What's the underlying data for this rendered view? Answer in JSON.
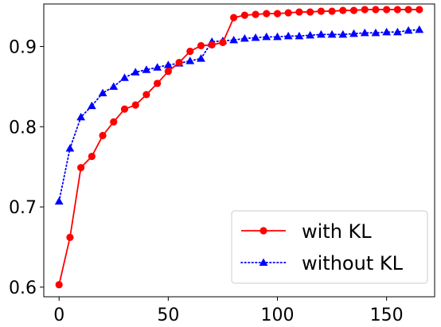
{
  "chart_data": {
    "type": "line",
    "title": "",
    "xlabel": "",
    "ylabel": "",
    "xlim": [
      -7,
      172
    ],
    "ylim": [
      0.588,
      0.953
    ],
    "xticks": [
      0,
      50,
      100,
      150
    ],
    "xtick_labels": [
      "0",
      "50",
      "100",
      "150"
    ],
    "yticks": [
      0.6,
      0.7,
      0.8,
      0.9
    ],
    "ytick_labels": [
      "0.6",
      "0.7",
      "0.8",
      "0.9"
    ],
    "grid": false,
    "legend_position": "lower-right",
    "series": [
      {
        "name": "with KL",
        "color": "#ff0000",
        "line_style": "solid",
        "marker": "circle",
        "x": [
          0,
          5,
          10,
          15,
          20,
          25,
          30,
          35,
          40,
          45,
          50,
          55,
          60,
          65,
          70,
          75,
          80,
          85,
          90,
          95,
          100,
          105,
          110,
          115,
          120,
          125,
          130,
          135,
          140,
          145,
          150,
          155,
          160,
          165
        ],
        "y": [
          0.603,
          0.662,
          0.749,
          0.763,
          0.789,
          0.806,
          0.822,
          0.827,
          0.84,
          0.854,
          0.869,
          0.88,
          0.894,
          0.901,
          0.902,
          0.905,
          0.936,
          0.939,
          0.94,
          0.941,
          0.941,
          0.942,
          0.943,
          0.943,
          0.944,
          0.944,
          0.945,
          0.945,
          0.946,
          0.946,
          0.946,
          0.946,
          0.946,
          0.946
        ]
      },
      {
        "name": "without KL",
        "color": "#0000ff",
        "line_style": "dotted",
        "marker": "triangle",
        "x": [
          0,
          5,
          10,
          15,
          20,
          25,
          30,
          35,
          40,
          45,
          50,
          55,
          60,
          65,
          70,
          75,
          80,
          85,
          90,
          95,
          100,
          105,
          110,
          115,
          120,
          125,
          130,
          135,
          140,
          145,
          150,
          155,
          160,
          165
        ],
        "y": [
          0.707,
          0.773,
          0.812,
          0.826,
          0.842,
          0.85,
          0.861,
          0.868,
          0.871,
          0.874,
          0.877,
          0.879,
          0.882,
          0.885,
          0.906,
          0.907,
          0.908,
          0.91,
          0.911,
          0.912,
          0.912,
          0.913,
          0.913,
          0.914,
          0.915,
          0.915,
          0.915,
          0.916,
          0.917,
          0.917,
          0.918,
          0.918,
          0.92,
          0.921
        ]
      }
    ]
  }
}
